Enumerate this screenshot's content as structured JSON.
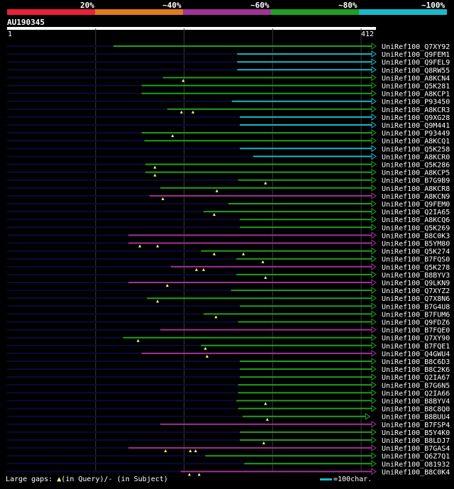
{
  "identity_scale": {
    "segments": [
      {
        "label": "20%",
        "color": "#e8203a"
      },
      {
        "label": "~40%",
        "color": "#e07a20"
      },
      {
        "label": "~60%",
        "color": "#a03298"
      },
      {
        "label": "~80%",
        "color": "#20a020"
      },
      {
        "label": "~100%",
        "color": "#1ab8c8"
      }
    ]
  },
  "query": {
    "id": "AU190345",
    "start": "1",
    "end": "412",
    "length": 412
  },
  "colors": {
    "green": "#20a020",
    "cyan": "#1ab8c8",
    "purple": "#a03298",
    "dark": "#0a0a3a",
    "gap": "#ffff80"
  },
  "hits": [
    {
      "name": "UniRef100_Q7XY92",
      "start": 120,
      "color": "green",
      "gaps": []
    },
    {
      "name": "UniRef100_Q9FEM1",
      "start": 260,
      "color": "cyan",
      "gaps": []
    },
    {
      "name": "UniRef100_Q9FEL9",
      "start": 260,
      "color": "cyan",
      "gaps": []
    },
    {
      "name": "UniRef100_Q8RW55",
      "start": 260,
      "color": "cyan",
      "gaps": []
    },
    {
      "name": "UniRef100_A8KCN4",
      "start": 176,
      "color": "green",
      "gaps": [
        199
      ]
    },
    {
      "name": "UniRef100_Q5K281",
      "start": 152,
      "color": "green",
      "gaps": []
    },
    {
      "name": "UniRef100_A8KCP1",
      "start": 152,
      "color": "green",
      "gaps": []
    },
    {
      "name": "UniRef100_P93450",
      "start": 254,
      "color": "cyan",
      "gaps": []
    },
    {
      "name": "UniRef100_A8KCR3",
      "start": 181,
      "color": "green",
      "gaps": [
        197,
        210
      ]
    },
    {
      "name": "UniRef100_Q9XG28",
      "start": 263,
      "color": "cyan",
      "gaps": []
    },
    {
      "name": "UniRef100_Q9M441",
      "start": 263,
      "color": "cyan",
      "gaps": []
    },
    {
      "name": "UniRef100_P93449",
      "start": 152,
      "color": "green",
      "gaps": [
        187
      ]
    },
    {
      "name": "UniRef100_A8KCQ1",
      "start": 155,
      "color": "green",
      "gaps": []
    },
    {
      "name": "UniRef100_Q5K258",
      "start": 263,
      "color": "cyan",
      "gaps": []
    },
    {
      "name": "UniRef100_A8KCR0",
      "start": 278,
      "color": "cyan",
      "gaps": []
    },
    {
      "name": "UniRef100_Q5K286",
      "start": 156,
      "color": "green",
      "gaps": [
        167
      ]
    },
    {
      "name": "UniRef100_A8KCP5",
      "start": 156,
      "color": "green",
      "gaps": [
        167
      ]
    },
    {
      "name": "UniRef100_B7G9B9",
      "start": 261,
      "color": "green",
      "gaps": [
        292
      ]
    },
    {
      "name": "UniRef100_A8KCR8",
      "start": 173,
      "color": "green",
      "gaps": [
        237
      ]
    },
    {
      "name": "UniRef100_A8KCN9",
      "start": 161,
      "color": "purple",
      "gaps": [
        176
      ]
    },
    {
      "name": "UniRef100_Q9FEM0",
      "start": 250,
      "color": "green",
      "gaps": []
    },
    {
      "name": "UniRef100_Q2IA65",
      "start": 222,
      "color": "green",
      "gaps": [
        234
      ]
    },
    {
      "name": "UniRef100_A8KCQ6",
      "start": 263,
      "color": "green",
      "gaps": []
    },
    {
      "name": "UniRef100_Q5K269",
      "start": 263,
      "color": "green",
      "gaps": []
    },
    {
      "name": "UniRef100_B8C0K3",
      "start": 137,
      "color": "purple",
      "gaps": []
    },
    {
      "name": "UniRef100_B5YM80",
      "start": 137,
      "color": "purple",
      "gaps": [
        150,
        170
      ]
    },
    {
      "name": "UniRef100_Q5K274",
      "start": 219,
      "color": "green",
      "gaps": [
        234,
        267
      ]
    },
    {
      "name": "UniRef100_B7FQS0",
      "start": 259,
      "color": "green",
      "gaps": [
        289
      ]
    },
    {
      "name": "UniRef100_Q5K278",
      "start": 185,
      "color": "purple",
      "gaps": [
        214,
        222
      ]
    },
    {
      "name": "UniRef100_B8BYV3",
      "start": 259,
      "color": "green",
      "gaps": [
        292
      ]
    },
    {
      "name": "UniRef100_Q9LKN9",
      "start": 137,
      "color": "purple",
      "gaps": [
        181
      ]
    },
    {
      "name": "UniRef100_Q7XYZ2",
      "start": 253,
      "color": "green",
      "gaps": []
    },
    {
      "name": "UniRef100_Q7X8N6",
      "start": 158,
      "color": "green",
      "gaps": [
        170
      ]
    },
    {
      "name": "UniRef100_B7G4U8",
      "start": 263,
      "color": "green",
      "gaps": []
    },
    {
      "name": "UniRef100_B7FUM6",
      "start": 222,
      "color": "green",
      "gaps": [
        236
      ]
    },
    {
      "name": "UniRef100_Q9FDZ6",
      "start": 261,
      "color": "green",
      "gaps": []
    },
    {
      "name": "UniRef100_B7FQE0",
      "start": 173,
      "color": "purple",
      "gaps": []
    },
    {
      "name": "UniRef100_Q7XY90",
      "start": 131,
      "color": "green",
      "gaps": [
        148
      ]
    },
    {
      "name": "UniRef100_B7FQE1",
      "start": 219,
      "color": "green",
      "gaps": [
        224
      ]
    },
    {
      "name": "UniRef100_Q4GWU4",
      "start": 152,
      "color": "purple",
      "gaps": [
        226
      ]
    },
    {
      "name": "UniRef100_B8C6D3",
      "start": 263,
      "color": "green",
      "gaps": []
    },
    {
      "name": "UniRef100_B8C2K6",
      "start": 263,
      "color": "green",
      "gaps": []
    },
    {
      "name": "UniRef100_Q2IA67",
      "start": 263,
      "color": "green",
      "gaps": []
    },
    {
      "name": "UniRef100_B7G6N5",
      "start": 261,
      "color": "green",
      "gaps": []
    },
    {
      "name": "UniRef100_Q2IA66",
      "start": 261,
      "color": "green",
      "gaps": []
    },
    {
      "name": "UniRef100_B8BYV4",
      "start": 259,
      "color": "green",
      "gaps": [
        292
      ]
    },
    {
      "name": "UniRef100_B8C8Q0",
      "start": 261,
      "color": "green",
      "gaps": []
    },
    {
      "name": "UniRef100_B8BUU4",
      "start": 266,
      "color": "green",
      "gaps": [
        294
      ],
      "end": 405
    },
    {
      "name": "UniRef100_B7FSP4",
      "start": 173,
      "color": "purple",
      "gaps": []
    },
    {
      "name": "UniRef100_B5Y4K0",
      "start": 263,
      "color": "green",
      "gaps": []
    },
    {
      "name": "UniRef100_B8LDJ7",
      "start": 263,
      "color": "green",
      "gaps": [
        290
      ]
    },
    {
      "name": "UniRef100_B7GAS4",
      "start": 137,
      "color": "purple",
      "gaps": [
        179,
        207,
        213
      ]
    },
    {
      "name": "UniRef100_Q6Z7Q1",
      "start": 224,
      "color": "green",
      "gaps": []
    },
    {
      "name": "UniRef100_O81932",
      "start": 268,
      "color": "green",
      "gaps": []
    },
    {
      "name": "UniRef100_B8C0K4",
      "start": 196,
      "color": "purple",
      "gaps": [
        206,
        217
      ]
    }
  ],
  "footer": {
    "legend": "Large gaps:",
    "in_query": "(in Query)/- (in Subject)",
    "scale_text": "=100char."
  }
}
